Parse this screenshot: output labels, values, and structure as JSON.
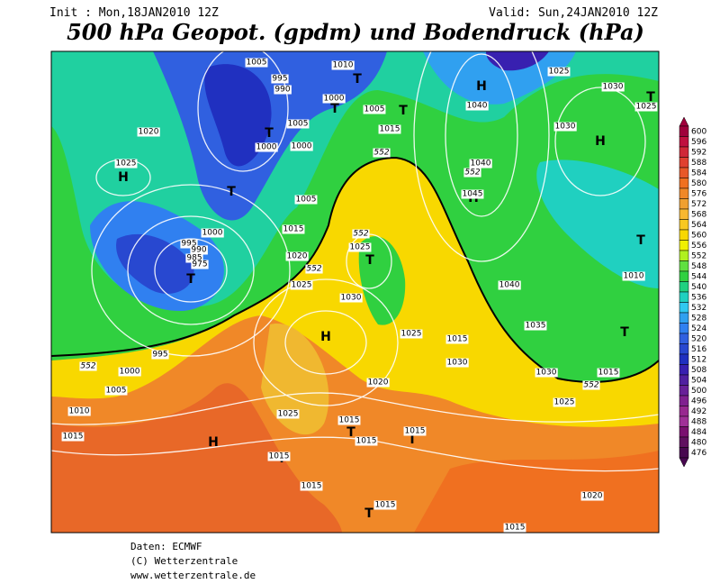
{
  "header": {
    "init": "Init : Mon,18JAN2010 12Z",
    "valid": "Valid: Sun,24JAN2010 12Z",
    "title": "500 hPa Geopot. (gpdm) und Bodendruck (hPa)"
  },
  "footer": [
    "Daten: ECMWF",
    "(C) Wetterzentrale",
    "www.wetterzentrale.de"
  ],
  "colorbar": {
    "levels": [
      600,
      596,
      592,
      588,
      584,
      580,
      576,
      572,
      568,
      564,
      560,
      556,
      552,
      548,
      544,
      540,
      536,
      532,
      528,
      524,
      520,
      516,
      512,
      508,
      504,
      500,
      496,
      492,
      488,
      484,
      480,
      476
    ],
    "colors": [
      "#a0003c",
      "#c01040",
      "#d02838",
      "#e04030",
      "#e85828",
      "#f07020",
      "#f08828",
      "#f0a030",
      "#f8b830",
      "#f8c820",
      "#f8d800",
      "#f0f000",
      "#b0f020",
      "#60e040",
      "#30d040",
      "#20d080",
      "#20d0c0",
      "#30c8f0",
      "#30a0f0",
      "#3080f0",
      "#3060e0",
      "#2848d0",
      "#2030c0",
      "#3820b0",
      "#5020a0",
      "#682098",
      "#802090",
      "#982890",
      "#a03098",
      "#7a1070",
      "#601060",
      "#480850"
    ]
  },
  "map_labels": [
    "H",
    "H",
    "H",
    "H",
    "H",
    "H",
    "T",
    "T",
    "T",
    "T",
    "T",
    "T",
    "T",
    "T",
    "T",
    "T",
    "T",
    "T",
    "T",
    "T",
    "1005",
    "995",
    "990",
    "1010",
    "1000",
    "1005",
    "1015",
    "1020",
    "1025",
    "1000",
    "1005",
    "1000",
    "1005",
    "1015",
    "1000",
    "995",
    "990",
    "985",
    "975",
    "1020",
    "1025",
    "1030",
    "1025",
    "1025",
    "1030",
    "1025",
    "1040",
    "1030",
    "1040",
    "1045",
    "1040",
    "1035",
    "1010",
    "1025",
    "1015",
    "1030",
    "1030",
    "1015",
    "1025",
    "1020",
    "1025",
    "1015",
    "1015",
    "1015",
    "1015",
    "1015",
    "1015",
    "1015",
    "1020",
    "995",
    "1000",
    "1005",
    "1010",
    "1015",
    "552",
    "552",
    "552",
    "552",
    "552",
    "552"
  ]
}
